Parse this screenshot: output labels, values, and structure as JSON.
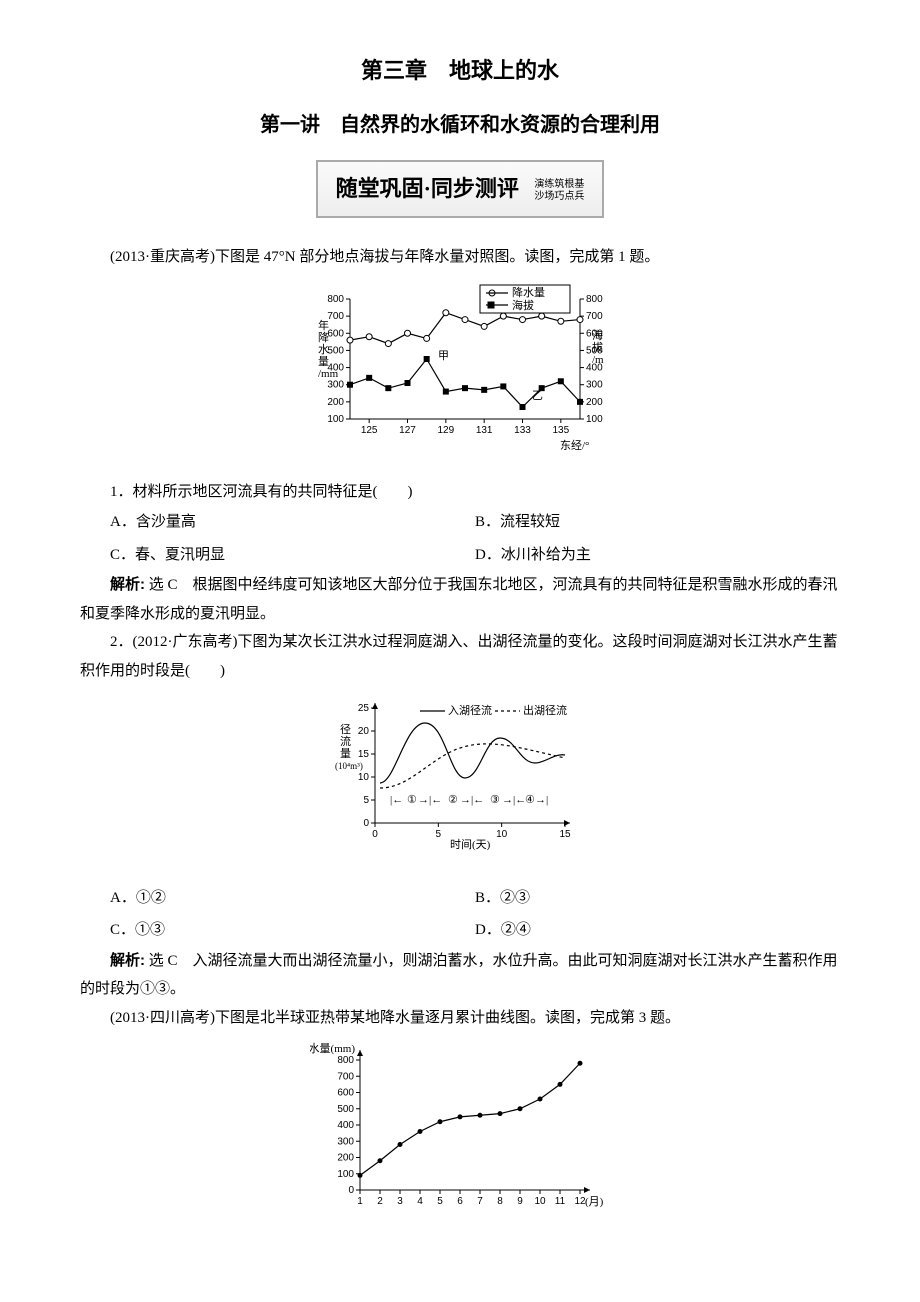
{
  "chapter_title": "第三章　地球上的水",
  "section_title": "第一讲　自然界的水循环和水资源的合理利用",
  "banner": {
    "main": "随堂巩固·同步测评",
    "sub1": "演练筑根基",
    "sub2": "沙场巧点兵"
  },
  "q1_intro": "(2013·重庆高考)下图是 47°N 部分地点海拔与年降水量对照图。读图，完成第 1 题。",
  "chart1": {
    "type": "dual-axis-line",
    "x_label": "东经/°",
    "x_ticks": [
      125,
      127,
      129,
      131,
      133,
      135
    ],
    "y_left_label": "年降水量/mm",
    "y_right_label": "海拔/m",
    "y_ticks": [
      100,
      200,
      300,
      400,
      500,
      600,
      700,
      800
    ],
    "legend": {
      "precip": "降水量",
      "elev": "海拔"
    },
    "precip_values": [
      560,
      580,
      540,
      600,
      570,
      720,
      680,
      640,
      700,
      680,
      700,
      670,
      680
    ],
    "elev_values": [
      300,
      340,
      280,
      310,
      450,
      260,
      280,
      270,
      290,
      170,
      280,
      320,
      200
    ],
    "markers": {
      "jia": "甲",
      "yi": "乙"
    },
    "colors": {
      "line": "#000",
      "bg": "#fff",
      "marker_fill": "#fff"
    }
  },
  "q1_stem": "1．材料所示地区河流具有的共同特征是(　　)",
  "q1_options": {
    "A": "A．含沙量高",
    "B": "B．流程较短",
    "C": "C．春、夏汛明显",
    "D": "D．冰川补给为主"
  },
  "q1_explain_label": "解析:",
  "q1_explain": "选 C　根据图中经纬度可知该地区大部分位于我国东北地区，河流具有的共同特征是积雪融水形成的春汛和夏季降水形成的夏汛明显。",
  "q2_stem_full": "2．(2012·广东高考)下图为某次长江洪水过程洞庭湖入、出湖径流量的变化。这段时间洞庭湖对长江洪水产生蓄积作用的时段是(　　)",
  "chart2": {
    "type": "line",
    "x_label": "时间(天)",
    "y_label_l1": "径流量",
    "y_label_l2": "(10⁴m³)",
    "x_ticks": [
      0,
      5,
      10,
      15
    ],
    "y_ticks": [
      0,
      5,
      10,
      15,
      20,
      25
    ],
    "legend": {
      "in": "入湖径流",
      "out": "出湖径流"
    },
    "segments": [
      "①",
      "②",
      "③",
      "④"
    ],
    "colors": {
      "solid": "#000",
      "dash": "#000"
    }
  },
  "q2_options": {
    "A": "A．①②",
    "B": "B．②③",
    "C": "C．①③",
    "D": "D．②④"
  },
  "q2_explain_label": "解析:",
  "q2_explain": "选 C　入湖径流量大而出湖径流量小，则湖泊蓄水，水位升高。由此可知洞庭湖对长江洪水产生蓄积作用的时段为①③。",
  "q3_intro": "(2013·四川高考)下图是北半球亚热带某地降水量逐月累计曲线图。读图，完成第 3 题。",
  "chart3": {
    "type": "line",
    "x_label": "(月)",
    "y_label": "降水量(mm)",
    "x_ticks": [
      1,
      2,
      3,
      4,
      5,
      6,
      7,
      8,
      9,
      10,
      11,
      12
    ],
    "y_ticks": [
      0,
      100,
      200,
      300,
      400,
      500,
      600,
      700,
      800
    ],
    "values": [
      90,
      180,
      280,
      360,
      420,
      450,
      460,
      470,
      500,
      560,
      650,
      780
    ],
    "colors": {
      "line": "#000",
      "marker": "#000"
    }
  }
}
